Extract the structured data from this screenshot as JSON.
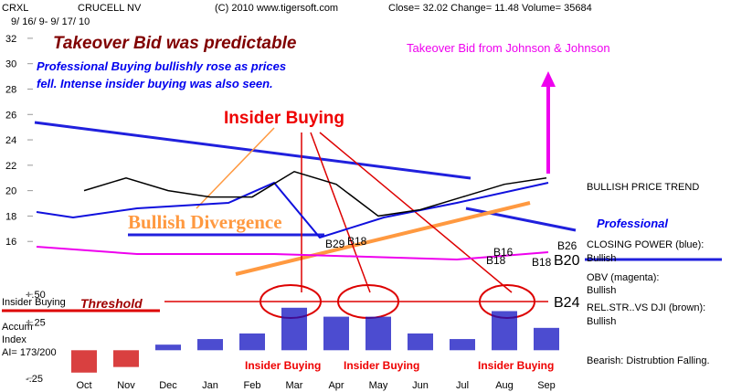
{
  "header": {
    "symbol": "CRXL",
    "name": "CRUCELL NV",
    "copyright": "(C) 2010 www.tigersoft.com",
    "quote": "Close=  32.02  Change= 11.48 Volume=  35684",
    "dates": "9/ 16/ 9- 9/ 17/ 10"
  },
  "chart_data": [
    {
      "type": "line",
      "categories": [
        "Oct",
        "Nov",
        "Dec",
        "Jan",
        "Feb",
        "Mar",
        "Apr",
        "May",
        "Jun",
        "Jul",
        "Aug",
        "Sep"
      ],
      "series": [
        {
          "color": "#000000",
          "values": [
            20,
            21,
            20,
            19.5,
            19.5,
            21.5,
            20.5,
            18,
            18.5,
            19.5,
            20.5,
            21
          ]
        }
      ],
      "ylim": [
        14,
        33
      ],
      "yticks": [
        16,
        18,
        20,
        22,
        24,
        26,
        28,
        30,
        32
      ]
    },
    {
      "type": "bar",
      "color": "#1010c0",
      "negative_color": "#cc0000",
      "values": [
        -0.2,
        -0.15,
        0.05,
        0.1,
        0.15,
        0.38,
        0.3,
        0.3,
        0.15,
        0.1,
        0.35,
        0.2
      ],
      "ylim": [
        -0.3,
        0.55
      ],
      "yticks": [
        {
          "value": 0.5,
          "label": "+.50"
        },
        {
          "value": 0.25,
          "label": "+.25"
        },
        {
          "value": -0.25,
          "label": "-.25"
        }
      ]
    }
  ],
  "annotations": [
    {
      "text": "Takeover Bid was predictable",
      "color": "#800000"
    },
    {
      "text": "Professional Buying bullishly rose as prices",
      "color": "#0000ee"
    },
    {
      "text": "fell.  Intense insider buying was also seen.",
      "color": "#0000ee"
    },
    {
      "text": "Insider Buying",
      "color": "#ee0000"
    },
    {
      "text": "Takeover Bid from Johnson & Johnson",
      "color": "#ee00ee"
    },
    {
      "text": "Bullish Divergence",
      "color": "#ff9940"
    },
    {
      "text": "BULLISH PRICE TREND",
      "color": "#000000"
    },
    {
      "text": "Professional",
      "color": "#0000ee"
    },
    {
      "text": "CLOSING POWER (blue):",
      "color": "#000000"
    },
    {
      "text": "Bullish",
      "color": "#000000"
    },
    {
      "text": "OBV (magenta):",
      "color": "#000000"
    },
    {
      "text": "Bullish",
      "color": "#000000"
    },
    {
      "text": "REL.STR..VS DJI (brown):",
      "color": "#000000"
    },
    {
      "text": "Bullish",
      "color": "#000000"
    },
    {
      "text": "Bearish: Distrubtion Falling.",
      "color": "#000000"
    },
    {
      "text": "Insider Buying",
      "color": "#ee0000"
    },
    {
      "text": "Insider Buying",
      "color": "#ee0000"
    },
    {
      "text": "Insider Buying",
      "color": "#ee0000"
    },
    {
      "text": "Threshold",
      "color": "#a00000"
    },
    {
      "text": "Insider Buying",
      "color": "#000000"
    },
    {
      "text": "Accum",
      "color": "#000000"
    },
    {
      "text": "Index",
      "color": "#000000"
    },
    {
      "text": "AI= 173/200",
      "color": "#000000"
    },
    {
      "text": "B29",
      "color": "#000000"
    },
    {
      "text": "B18",
      "color": "#000000"
    },
    {
      "text": "B16",
      "color": "#000000"
    },
    {
      "text": "B18",
      "color": "#000000"
    },
    {
      "text": "B18",
      "color": "#000000"
    },
    {
      "text": "B26",
      "color": "#000000"
    },
    {
      "text": "B20",
      "color": "#000000"
    },
    {
      "text": "B24",
      "color": "#000000"
    }
  ]
}
